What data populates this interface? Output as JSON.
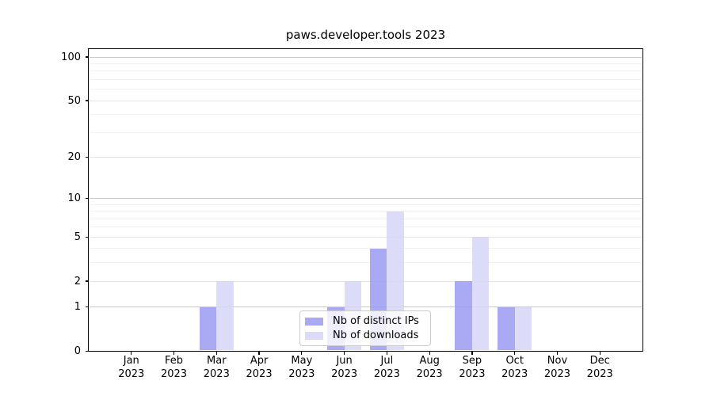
{
  "title": "paws.developer.tools 2023",
  "legend": {
    "items": [
      {
        "label": "Nb of distinct IPs",
        "color": "#9b9bf2"
      },
      {
        "label": "Nb of downloads",
        "color": "#d6d6f7"
      }
    ]
  },
  "axes": {
    "x_months": [
      "Jan",
      "Feb",
      "Mar",
      "Apr",
      "May",
      "Jun",
      "Jul",
      "Aug",
      "Sep",
      "Oct",
      "Nov",
      "Dec"
    ],
    "x_year": "2023",
    "y_tick_values": [
      0,
      1,
      2,
      5,
      10,
      20,
      50,
      100
    ]
  },
  "chart_data": {
    "type": "bar",
    "title": "paws.developer.tools 2023",
    "categories": [
      "Jan 2023",
      "Feb 2023",
      "Mar 2023",
      "Apr 2023",
      "May 2023",
      "Jun 2023",
      "Jul 2023",
      "Aug 2023",
      "Sep 2023",
      "Oct 2023",
      "Nov 2023",
      "Dec 2023"
    ],
    "series": [
      {
        "name": "Nb of distinct IPs",
        "color": "#9b9bf2",
        "values": [
          0,
          0,
          1,
          0,
          0,
          1,
          4,
          0,
          2,
          1,
          0,
          0
        ]
      },
      {
        "name": "Nb of downloads",
        "color": "#d6d6f7",
        "values": [
          0,
          0,
          2,
          0,
          0,
          2,
          8,
          0,
          5,
          1,
          0,
          0
        ]
      }
    ],
    "xlabel": "",
    "ylabel": "",
    "yscale": "log1p",
    "y_ticks": [
      0,
      1,
      2,
      5,
      10,
      20,
      50,
      100
    ],
    "ylim": [
      0,
      113
    ],
    "grid": true,
    "legend_position": "lower center"
  }
}
